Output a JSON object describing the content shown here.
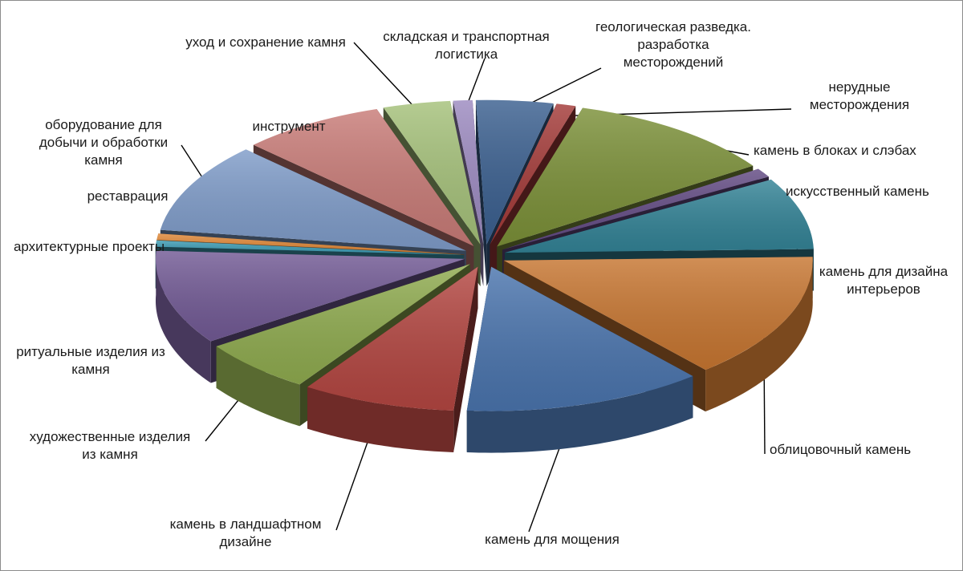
{
  "chart_data": {
    "type": "pie",
    "style": "3d-exploded",
    "legend": "none (direct labels with leader lines)",
    "slices": [
      {
        "label": "геологическая разведка. разработка месторождений",
        "value": 4.0,
        "color": "#3a5f8f"
      },
      {
        "label": "нерудные месторождения",
        "value": 1.0,
        "color": "#a33a38"
      },
      {
        "label": "камень в блоках  и слэбах",
        "value": 11.0,
        "color": "#7b9038"
      },
      {
        "label": "искусственный камень",
        "value": 1.0,
        "color": "#624a83"
      },
      {
        "label": "камень для дизайна интерьеров",
        "value": 8.0,
        "color": "#338396"
      },
      {
        "label": "облицовочный камень",
        "value": 14.0,
        "color": "#c77631"
      },
      {
        "label": "камень для мощения",
        "value": 12.5,
        "color": "#4a74ad"
      },
      {
        "label": "камень в ландшафтном дизайне",
        "value": 8.0,
        "color": "#b34641"
      },
      {
        "label": "художественные изделия из камня",
        "value": 6.0,
        "color": "#8fab4f"
      },
      {
        "label": "ритуальные изделия из камня",
        "value": 10.5,
        "color": "#725a95"
      },
      {
        "label": "архитектурные проекты",
        "value": 0.7,
        "color": "#3d9cb4"
      },
      {
        "label": "реставрация",
        "value": 0.7,
        "color": "#e08838"
      },
      {
        "label": "оборудование для добычи и обработки камня",
        "value": 10.0,
        "color": "#7f9cc9"
      },
      {
        "label": "инструмент",
        "value": 7.5,
        "color": "#c87b77"
      },
      {
        "label": "уход и сохранение камня",
        "value": 3.5,
        "color": "#a5c17a"
      },
      {
        "label": "складская и транспортная логистика",
        "value": 1.0,
        "color": "#9c8ac0"
      }
    ]
  }
}
